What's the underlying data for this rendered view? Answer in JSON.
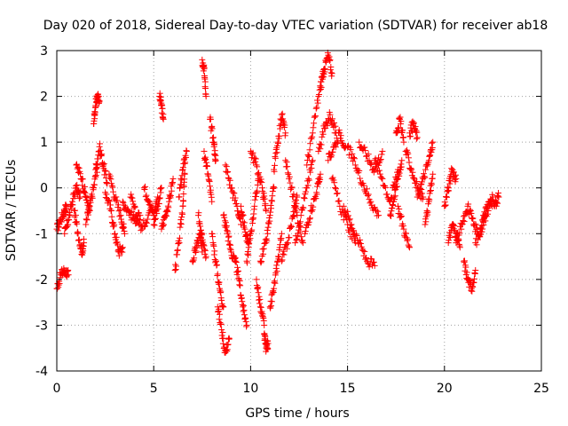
{
  "chart_data": {
    "type": "scatter",
    "title": "Day 020 of 2018, Sidereal Day-to-day VTEC variation (SDTVAR) for receiver ab18",
    "xlabel": "GPS time / hours",
    "ylabel": "SDTVAR / TECUs",
    "xlim": [
      0,
      25
    ],
    "ylim": [
      -4,
      3
    ],
    "xticks": [
      0,
      5,
      10,
      15,
      20,
      25
    ],
    "yticks": [
      -4,
      -3,
      -2,
      -1,
      0,
      1,
      2,
      3
    ],
    "grid": true,
    "marker": "+",
    "color": "#ff0000",
    "series": [
      {
        "name": "SDTVAR",
        "segments": [
          {
            "x": [
              0.0,
              0.2,
              0.4,
              0.5
            ],
            "y": [
              -0.9,
              -0.7,
              -0.5,
              -0.4
            ]
          },
          {
            "x": [
              0.0,
              0.2,
              0.4,
              0.6
            ],
            "y": [
              -2.2,
              -1.9,
              -1.8,
              -1.9
            ]
          },
          {
            "x": [
              0.4,
              0.6,
              0.8,
              1.0,
              1.2
            ],
            "y": [
              -1.0,
              -0.7,
              -0.3,
              0.0,
              -0.2
            ]
          },
          {
            "x": [
              0.9,
              1.1,
              1.3,
              1.4
            ],
            "y": [
              -0.5,
              -1.0,
              -1.4,
              -1.2
            ]
          },
          {
            "x": [
              1.0,
              1.3,
              1.5,
              1.7
            ],
            "y": [
              0.5,
              0.2,
              -0.2,
              -0.5
            ]
          },
          {
            "x": [
              1.5,
              1.7,
              1.9,
              2.1
            ],
            "y": [
              -0.8,
              -0.4,
              0.0,
              0.5
            ]
          },
          {
            "x": [
              1.9,
              2.0,
              2.1,
              2.2
            ],
            "y": [
              1.4,
              1.8,
              2.0,
              1.9
            ]
          },
          {
            "x": [
              2.0,
              2.2,
              2.4,
              2.6
            ],
            "y": [
              0.4,
              0.9,
              0.5,
              0.1
            ]
          },
          {
            "x": [
              2.5,
              2.8,
              3.0,
              3.2,
              3.4
            ],
            "y": [
              -0.1,
              -0.5,
              -1.0,
              -1.4,
              -1.3
            ]
          },
          {
            "x": [
              2.7,
              3.0,
              3.3,
              3.5
            ],
            "y": [
              0.3,
              -0.2,
              -0.6,
              -1.0
            ]
          },
          {
            "x": [
              3.4,
              3.7,
              4.0,
              4.3
            ],
            "y": [
              -0.3,
              -0.5,
              -0.7,
              -0.6
            ]
          },
          {
            "x": [
              3.8,
              4.1,
              4.4,
              4.8
            ],
            "y": [
              -0.2,
              -0.6,
              -0.9,
              -0.5
            ]
          },
          {
            "x": [
              4.5,
              4.8,
              5.0,
              5.2
            ],
            "y": [
              0.0,
              -0.3,
              -0.6,
              -0.2
            ]
          },
          {
            "x": [
              5.0,
              5.2,
              5.4
            ],
            "y": [
              -0.8,
              -0.4,
              0.0
            ]
          },
          {
            "x": [
              5.3,
              5.4,
              5.5
            ],
            "y": [
              2.0,
              1.8,
              1.5
            ]
          },
          {
            "x": [
              5.4,
              5.6,
              5.8,
              6.0
            ],
            "y": [
              -0.9,
              -0.6,
              -0.3,
              0.2
            ]
          },
          {
            "x": [
              6.1,
              6.3,
              6.5,
              6.6
            ],
            "y": [
              -1.8,
              -1.2,
              -0.4,
              0.3
            ]
          },
          {
            "x": [
              6.3,
              6.5,
              6.7
            ],
            "y": [
              -0.2,
              0.4,
              0.8
            ]
          },
          {
            "x": [
              7.0,
              7.2,
              7.4,
              7.5
            ],
            "y": [
              -1.6,
              -1.3,
              -1.0,
              -1.4
            ]
          },
          {
            "x": [
              7.3,
              7.5,
              7.7
            ],
            "y": [
              -0.6,
              -1.0,
              -1.5
            ]
          },
          {
            "x": [
              7.5,
              7.6,
              7.7
            ],
            "y": [
              2.8,
              2.6,
              2.0
            ]
          },
          {
            "x": [
              7.6,
              7.8,
              8.0
            ],
            "y": [
              0.8,
              0.3,
              -0.3
            ]
          },
          {
            "x": [
              7.9,
              8.1,
              8.2
            ],
            "y": [
              1.5,
              1.0,
              0.6
            ]
          },
          {
            "x": [
              8.0,
              8.2,
              8.4,
              8.6
            ],
            "y": [
              -1.0,
              -1.6,
              -2.2,
              -2.6
            ]
          },
          {
            "x": [
              8.3,
              8.5,
              8.7,
              8.9
            ],
            "y": [
              -2.6,
              -3.1,
              -3.6,
              -3.3
            ]
          },
          {
            "x": [
              8.6,
              8.8,
              9.0,
              9.2
            ],
            "y": [
              -0.6,
              -1.0,
              -1.4,
              -1.6
            ]
          },
          {
            "x": [
              8.7,
              9.0,
              9.3,
              9.5
            ],
            "y": [
              0.5,
              0.0,
              -0.4,
              -0.8
            ]
          },
          {
            "x": [
              9.2,
              9.4,
              9.6,
              9.8
            ],
            "y": [
              -1.6,
              -2.0,
              -2.6,
              -3.0
            ]
          },
          {
            "x": [
              9.5,
              9.7,
              9.9
            ],
            "y": [
              -0.4,
              -0.9,
              -1.3
            ]
          },
          {
            "x": [
              9.8,
              10.0,
              10.2,
              10.4
            ],
            "y": [
              -1.6,
              -1.0,
              -0.4,
              0.2
            ]
          },
          {
            "x": [
              10.0,
              10.3,
              10.6,
              10.8
            ],
            "y": [
              0.8,
              0.5,
              0.0,
              -0.5
            ]
          },
          {
            "x": [
              10.3,
              10.5,
              10.7
            ],
            "y": [
              -2.0,
              -2.6,
              -3.0
            ]
          },
          {
            "x": [
              10.7,
              10.8,
              10.9
            ],
            "y": [
              -3.2,
              -3.5,
              -3.4
            ]
          },
          {
            "x": [
              10.5,
              10.8,
              11.0,
              11.2
            ],
            "y": [
              -1.6,
              -1.2,
              -0.6,
              0.0
            ]
          },
          {
            "x": [
              11.0,
              11.2,
              11.4,
              11.6
            ],
            "y": [
              -2.6,
              -2.2,
              -1.6,
              -1.0
            ]
          },
          {
            "x": [
              11.2,
              11.4,
              11.6,
              11.8
            ],
            "y": [
              0.4,
              1.0,
              1.6,
              1.2
            ]
          },
          {
            "x": [
              11.6,
              11.9,
              12.2,
              12.4
            ],
            "y": [
              -1.6,
              -1.2,
              -0.6,
              -0.2
            ]
          },
          {
            "x": [
              11.8,
              12.1,
              12.4,
              12.7
            ],
            "y": [
              0.6,
              0.0,
              -0.6,
              -1.2
            ]
          },
          {
            "x": [
              12.3,
              12.6,
              12.9,
              13.2
            ],
            "y": [
              -1.2,
              -0.6,
              0.0,
              0.6
            ]
          },
          {
            "x": [
              12.8,
              13.1,
              13.4,
              13.6
            ],
            "y": [
              -1.0,
              -0.5,
              -0.1,
              0.3
            ]
          },
          {
            "x": [
              12.9,
              13.2,
              13.5,
              13.8
            ],
            "y": [
              0.5,
              1.2,
              2.0,
              2.6
            ]
          },
          {
            "x": [
              13.6,
              13.8,
              14.0,
              14.2
            ],
            "y": [
              2.2,
              2.6,
              2.9,
              2.5
            ]
          },
          {
            "x": [
              13.5,
              13.8,
              14.1,
              14.4
            ],
            "y": [
              0.8,
              1.3,
              1.6,
              1.2
            ]
          },
          {
            "x": [
              14.0,
              14.3,
              14.6,
              14.9
            ],
            "y": [
              0.6,
              0.9,
              1.2,
              0.9
            ]
          },
          {
            "x": [
              14.2,
              14.6,
              15.0,
              15.4
            ],
            "y": [
              0.2,
              -0.4,
              -0.8,
              -1.2
            ]
          },
          {
            "x": [
              14.8,
              15.2,
              15.6,
              16.0,
              16.4
            ],
            "y": [
              -0.4,
              -0.8,
              -1.2,
              -1.6,
              -1.7
            ]
          },
          {
            "x": [
              15.0,
              15.4,
              15.8,
              16.2,
              16.6
            ],
            "y": [
              0.9,
              0.5,
              0.1,
              -0.3,
              -0.6
            ]
          },
          {
            "x": [
              15.6,
              16.0,
              16.4,
              16.8
            ],
            "y": [
              1.0,
              0.7,
              0.4,
              0.8
            ]
          },
          {
            "x": [
              16.4,
              16.8,
              17.2,
              17.6
            ],
            "y": [
              0.6,
              0.2,
              -0.3,
              0.4
            ]
          },
          {
            "x": [
              17.2,
              17.4,
              17.6,
              17.8
            ],
            "y": [
              -0.6,
              -0.2,
              0.2,
              0.6
            ]
          },
          {
            "x": [
              17.5,
              17.7,
              17.9
            ],
            "y": [
              1.2,
              1.5,
              1.0
            ]
          },
          {
            "x": [
              17.6,
              17.9,
              18.2
            ],
            "y": [
              -0.4,
              -0.9,
              -1.3
            ]
          },
          {
            "x": [
              18.0,
              18.3,
              18.6,
              18.9
            ],
            "y": [
              0.8,
              0.4,
              0.0,
              -0.2
            ]
          },
          {
            "x": [
              18.2,
              18.4,
              18.6
            ],
            "y": [
              1.2,
              1.4,
              1.1
            ]
          },
          {
            "x": [
              18.6,
              18.9,
              19.2,
              19.4
            ],
            "y": [
              -0.2,
              0.2,
              0.6,
              1.0
            ]
          },
          {
            "x": [
              19.0,
              19.2,
              19.4
            ],
            "y": [
              -0.8,
              -0.3,
              0.3
            ]
          },
          {
            "x": [
              20.0,
              20.2,
              20.4,
              20.6
            ],
            "y": [
              -0.4,
              0.0,
              0.4,
              0.2
            ]
          },
          {
            "x": [
              20.2,
              20.4,
              20.6,
              20.8
            ],
            "y": [
              -1.2,
              -0.8,
              -1.0,
              -1.3
            ]
          },
          {
            "x": [
              20.6,
              20.9,
              21.2
            ],
            "y": [
              -1.2,
              -0.8,
              -0.5
            ]
          },
          {
            "x": [
              21.0,
              21.2,
              21.4,
              21.6
            ],
            "y": [
              -1.6,
              -2.0,
              -2.2,
              -1.8
            ]
          },
          {
            "x": [
              21.2,
              21.5,
              21.8,
              22.1
            ],
            "y": [
              -0.4,
              -0.8,
              -1.0,
              -0.6
            ]
          },
          {
            "x": [
              21.6,
              21.9,
              22.2,
              22.5
            ],
            "y": [
              -1.2,
              -0.9,
              -0.5,
              -0.2
            ]
          },
          {
            "x": [
              22.0,
              22.3,
              22.6,
              22.8
            ],
            "y": [
              -0.6,
              -0.3,
              -0.4,
              -0.2
            ]
          }
        ]
      }
    ]
  }
}
